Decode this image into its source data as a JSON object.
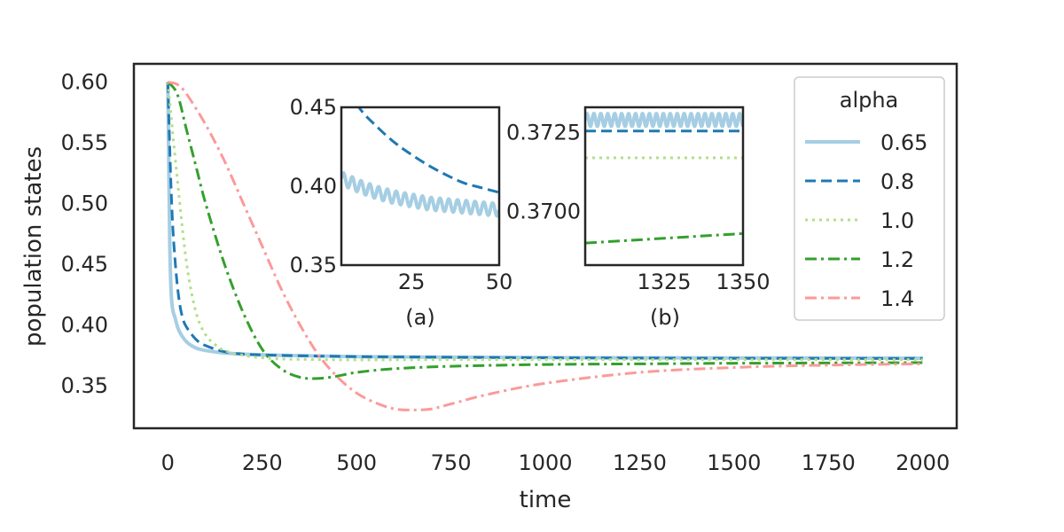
{
  "chart_data": {
    "type": "line",
    "xlabel": "time",
    "ylabel": "population states",
    "xlim": [
      -90,
      2090
    ],
    "ylim": [
      0.315,
      0.615
    ],
    "xticks": [
      "0",
      "250",
      "500",
      "750",
      "1000",
      "1250",
      "1500",
      "1750",
      "2000"
    ],
    "yticks": [
      "0.35",
      "0.40",
      "0.45",
      "0.50",
      "0.55",
      "0.60"
    ],
    "grid": false,
    "legend": {
      "title": "alpha",
      "placement": "top-right",
      "entries": [
        "0.65",
        "0.8",
        "1.0",
        "1.2",
        "1.4"
      ]
    },
    "series": [
      {
        "name": "0.65",
        "color": "#a6cee3",
        "dash": "solid",
        "x": [
          0,
          5,
          10,
          20,
          30,
          50,
          75,
          100,
          150,
          200,
          300,
          500,
          750,
          1000,
          1500,
          2000
        ],
        "y": [
          0.6,
          0.47,
          0.42,
          0.405,
          0.395,
          0.386,
          0.381,
          0.379,
          0.377,
          0.376,
          0.375,
          0.374,
          0.3735,
          0.3732,
          0.3729,
          0.3727
        ]
      },
      {
        "name": "0.8",
        "color": "#1f78b4",
        "dash": "dashed",
        "x": [
          0,
          10,
          20,
          30,
          40,
          50,
          75,
          100,
          150,
          200,
          300,
          500,
          750,
          1000,
          1500,
          2000
        ],
        "y": [
          0.6,
          0.5,
          0.45,
          0.42,
          0.405,
          0.398,
          0.388,
          0.383,
          0.378,
          0.376,
          0.375,
          0.374,
          0.3735,
          0.373,
          0.3726,
          0.3725
        ]
      },
      {
        "name": "1.0",
        "color": "#b2df8a",
        "dash": "dotted",
        "x": [
          0,
          25,
          50,
          75,
          100,
          125,
          150,
          200,
          250,
          300,
          400,
          500,
          750,
          1000,
          1500,
          2000
        ],
        "y": [
          0.6,
          0.52,
          0.45,
          0.41,
          0.392,
          0.384,
          0.379,
          0.375,
          0.373,
          0.372,
          0.3715,
          0.3713,
          0.3715,
          0.3716,
          0.3716,
          0.3716
        ]
      },
      {
        "name": "1.2",
        "color": "#33a02c",
        "dash": "dashdot",
        "x": [
          0,
          25,
          50,
          75,
          100,
          150,
          200,
          250,
          300,
          350,
          400,
          450,
          500,
          600,
          750,
          1000,
          1250,
          1500,
          2000
        ],
        "y": [
          0.6,
          0.59,
          0.56,
          0.53,
          0.5,
          0.45,
          0.41,
          0.38,
          0.364,
          0.357,
          0.356,
          0.358,
          0.361,
          0.364,
          0.366,
          0.3675,
          0.368,
          0.3685,
          0.369
        ]
      },
      {
        "name": "1.4",
        "color": "#fb9a99",
        "dash": "dashdot",
        "x": [
          0,
          25,
          50,
          100,
          150,
          200,
          250,
          300,
          350,
          400,
          450,
          500,
          550,
          600,
          650,
          700,
          750,
          850,
          1000,
          1250,
          1500,
          1750,
          2000
        ],
        "y": [
          0.6,
          0.598,
          0.59,
          0.565,
          0.535,
          0.5,
          0.465,
          0.43,
          0.4,
          0.375,
          0.357,
          0.344,
          0.336,
          0.331,
          0.33,
          0.331,
          0.335,
          0.343,
          0.352,
          0.361,
          0.365,
          0.367,
          0.368
        ]
      }
    ],
    "insets": [
      {
        "label": "(a)",
        "xlim": [
          5,
          50
        ],
        "ylim": [
          0.35,
          0.45
        ],
        "xticks": [
          "25",
          "50"
        ],
        "yticks": [
          "0.35",
          "0.40",
          "0.45"
        ],
        "series": [
          {
            "name": "0.65",
            "oscillating": true,
            "amplitude": 0.004,
            "period": 2.5,
            "x": [
              5,
              10,
              15,
              20,
              25,
              30,
              35,
              40,
              45,
              50
            ],
            "y": [
              0.405,
              0.4,
              0.396,
              0.393,
              0.391,
              0.389,
              0.388,
              0.387,
              0.386,
              0.385
            ]
          },
          {
            "name": "0.8",
            "x": [
              5,
              10,
              15,
              20,
              25,
              30,
              35,
              40,
              45,
              50
            ],
            "y": [
              0.47,
              0.45,
              0.438,
              0.428,
              0.42,
              0.413,
              0.407,
              0.402,
              0.399,
              0.396
            ]
          }
        ]
      },
      {
        "label": "(b)",
        "xlim": [
          1300,
          1350
        ],
        "ylim": [
          0.3683,
          0.3733
        ],
        "xticks": [
          "1325",
          "1350"
        ],
        "yticks": [
          "0.3700",
          "0.3725"
        ],
        "series": [
          {
            "name": "0.65",
            "oscillating": true,
            "amplitude": 0.0002,
            "period": 2.2,
            "x": [
              1300,
              1350
            ],
            "y": [
              0.3729,
              0.3729
            ]
          },
          {
            "name": "0.8",
            "x": [
              1300,
              1350
            ],
            "y": [
              0.37255,
              0.37255
            ]
          },
          {
            "name": "1.0",
            "x": [
              1300,
              1350
            ],
            "y": [
              0.3717,
              0.3717
            ]
          },
          {
            "name": "1.2",
            "x": [
              1300,
              1350
            ],
            "y": [
              0.369,
              0.3693
            ]
          }
        ]
      }
    ]
  }
}
